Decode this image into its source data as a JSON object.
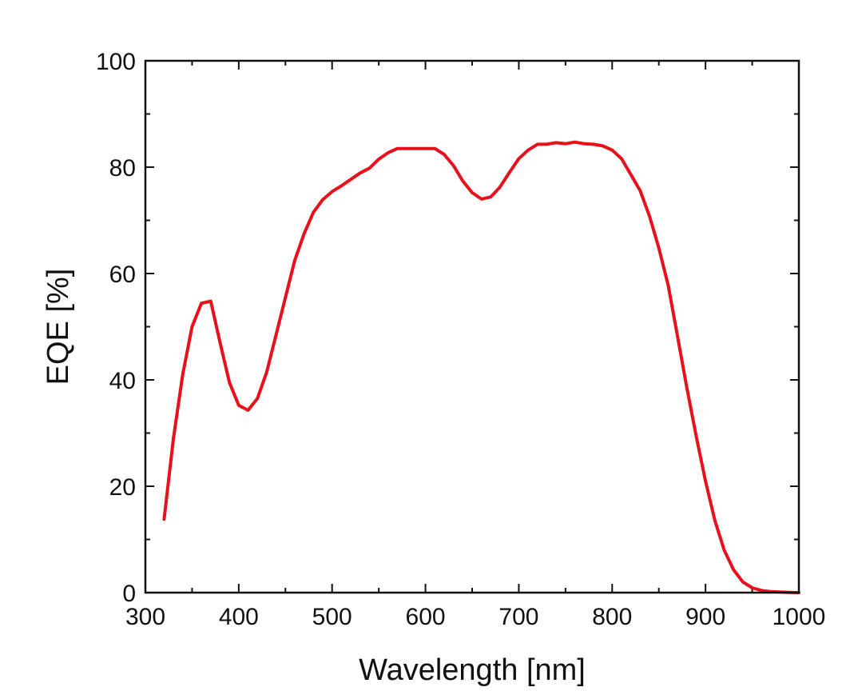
{
  "chart_data": {
    "type": "line",
    "title": "",
    "xlabel": "Wavelength [nm]",
    "ylabel": "EQE [%]",
    "xlim": [
      300,
      1000
    ],
    "ylim": [
      0,
      100
    ],
    "x_ticks": [
      300,
      400,
      500,
      600,
      700,
      800,
      900,
      1000
    ],
    "y_ticks": [
      0,
      20,
      40,
      60,
      80,
      100
    ],
    "grid": false,
    "legend": "none",
    "colors": {
      "line": "#e8101a",
      "axes": "#111111"
    },
    "series": [
      {
        "x": [
          320,
          330,
          340,
          350,
          360,
          370,
          380,
          390,
          400,
          410,
          420,
          430,
          440,
          450,
          460,
          470,
          480,
          490,
          500,
          510,
          520,
          530,
          540,
          550,
          560,
          570,
          580,
          590,
          600,
          610,
          620,
          630,
          640,
          650,
          660,
          670,
          680,
          690,
          700,
          710,
          720,
          730,
          740,
          750,
          760,
          770,
          780,
          790,
          800,
          810,
          820,
          830,
          840,
          850,
          860,
          870,
          880,
          890,
          900,
          910,
          920,
          930,
          940,
          950,
          960,
          970,
          980,
          990,
          1000
        ],
        "y": [
          13.8,
          29.0,
          41.0,
          50.0,
          54.4,
          54.8,
          47.0,
          39.5,
          35.2,
          34.3,
          36.5,
          41.5,
          48.5,
          55.5,
          62.5,
          67.5,
          71.5,
          73.9,
          75.4,
          76.5,
          77.7,
          78.9,
          79.8,
          81.5,
          82.7,
          83.5,
          83.5,
          83.5,
          83.5,
          83.5,
          82.4,
          80.3,
          77.4,
          75.2,
          74.0,
          74.4,
          76.3,
          79.0,
          81.6,
          83.2,
          84.3,
          84.3,
          84.6,
          84.4,
          84.7,
          84.4,
          84.3,
          84.0,
          83.2,
          81.6,
          78.6,
          75.6,
          70.8,
          64.8,
          57.8,
          48.2,
          38.5,
          29.4,
          21.0,
          13.6,
          8.0,
          4.3,
          2.0,
          0.9,
          0.4,
          0.2,
          0.1,
          0.05,
          0.0
        ]
      }
    ]
  }
}
